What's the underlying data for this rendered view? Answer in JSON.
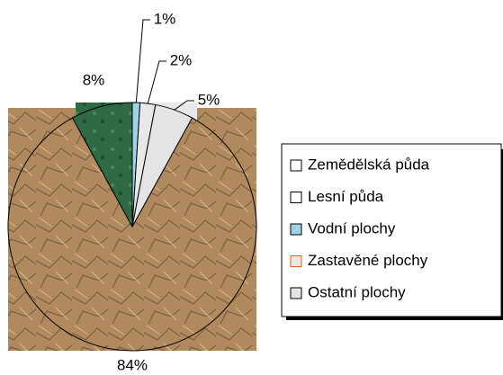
{
  "chart_data": {
    "type": "pie",
    "categories": [
      "Zemědělská půda",
      "Lesní půda",
      "Vodní plochy",
      "Zastavěné plochy",
      "Ostatní plochy"
    ],
    "values": [
      84,
      8,
      1,
      2,
      5
    ],
    "value_labels": [
      "84%",
      "8%",
      "1%",
      "2%",
      "5%"
    ],
    "colors": [
      "#b08a5e",
      "#2e6a44",
      "#9fd3e6",
      "#e8e8ea",
      "#e4e4e6"
    ],
    "legend": "right"
  }
}
